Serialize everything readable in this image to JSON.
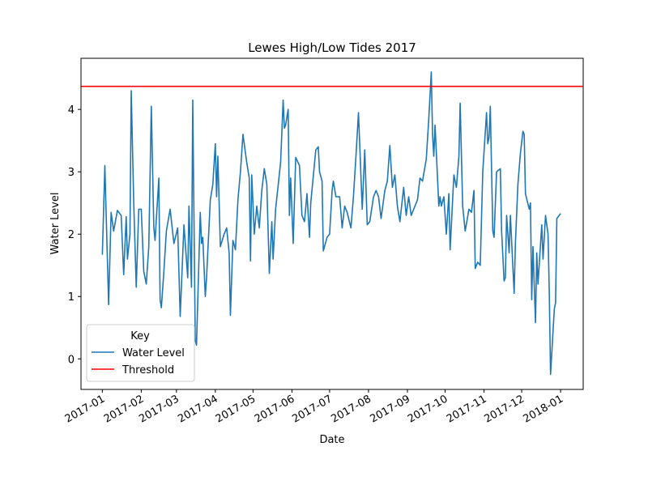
{
  "chart_data": {
    "type": "line",
    "title": "Lewes High/Low Tides 2017",
    "xlabel": "Date",
    "ylabel": "Water Level",
    "x": [
      0,
      2,
      5,
      7,
      9,
      12,
      15,
      17,
      19,
      20,
      22,
      23,
      25,
      27,
      29,
      31,
      33,
      35,
      37,
      39,
      41,
      42,
      45,
      46,
      47,
      49,
      51,
      54,
      57,
      60,
      62,
      65,
      68,
      69,
      71,
      72,
      74,
      75,
      78,
      79,
      80,
      82,
      83,
      86,
      88,
      90,
      91,
      92,
      94,
      97,
      99,
      101,
      102,
      104,
      106,
      108,
      110,
      112,
      115,
      117,
      118,
      119,
      121,
      123,
      125,
      127,
      129,
      131,
      133,
      135,
      136,
      138,
      142,
      144,
      145,
      146,
      148,
      149,
      150,
      152,
      154,
      157,
      159,
      161,
      163,
      165,
      166,
      170,
      172,
      173,
      175,
      176,
      179,
      181,
      183,
      184,
      186,
      189,
      191,
      193,
      195,
      198,
      200,
      202,
      204,
      207,
      209,
      211,
      213,
      216,
      218,
      220,
      222,
      225,
      227,
      229,
      231,
      233,
      235,
      237,
      240,
      242,
      244,
      246,
      249,
      251,
      253,
      255,
      258,
      260,
      262,
      263,
      264,
      265,
      268,
      269,
      270,
      272,
      274,
      276,
      277,
      280,
      282,
      284,
      285,
      287,
      289,
      292,
      294,
      296,
      297,
      299,
      301,
      303,
      306,
      307,
      308,
      309,
      311,
      312,
      314,
      317,
      318,
      320,
      321,
      322,
      324,
      325,
      328,
      329,
      331,
      333,
      335,
      336,
      337,
      340,
      341,
      342,
      343,
      345,
      346,
      347,
      350,
      351,
      353,
      355,
      356,
      357,
      360,
      361,
      362,
      365
    ],
    "series": [
      {
        "name": "Water Level",
        "color": "#1f77b4",
        "values": [
          1.67,
          3.1,
          0.87,
          2.35,
          2.05,
          2.38,
          2.3,
          1.35,
          2.28,
          1.6,
          2.0,
          4.3,
          2.5,
          1.15,
          2.4,
          2.4,
          1.4,
          1.2,
          1.8,
          4.05,
          2.1,
          1.9,
          2.9,
          0.95,
          0.82,
          1.4,
          2.05,
          2.4,
          1.85,
          2.1,
          0.68,
          2.15,
          1.3,
          2.45,
          1.15,
          4.15,
          0.3,
          0.22,
          2.35,
          1.85,
          1.95,
          1.0,
          1.3,
          2.55,
          2.8,
          3.45,
          2.6,
          3.25,
          1.8,
          2.0,
          2.1,
          1.7,
          0.7,
          1.9,
          1.75,
          2.55,
          3.0,
          3.6,
          3.15,
          2.9,
          1.57,
          2.95,
          2.0,
          2.45,
          2.1,
          2.7,
          3.05,
          2.8,
          1.37,
          2.2,
          1.6,
          2.4,
          3.15,
          4.15,
          3.7,
          3.75,
          4.0,
          2.3,
          2.9,
          1.85,
          3.23,
          3.1,
          2.3,
          2.2,
          2.65,
          1.95,
          2.5,
          3.35,
          3.4,
          3.0,
          2.85,
          1.73,
          1.95,
          2.0,
          2.7,
          2.85,
          2.6,
          2.6,
          2.1,
          2.45,
          2.35,
          2.1,
          2.6,
          3.25,
          3.95,
          2.4,
          3.35,
          2.15,
          2.2,
          2.6,
          2.7,
          2.6,
          2.25,
          2.7,
          2.85,
          3.42,
          2.75,
          2.95,
          2.45,
          2.2,
          2.75,
          2.3,
          2.6,
          2.3,
          2.45,
          2.55,
          2.9,
          2.85,
          3.2,
          3.85,
          4.6,
          3.6,
          3.25,
          3.75,
          2.45,
          2.6,
          2.45,
          2.6,
          2.0,
          2.65,
          1.75,
          2.95,
          2.75,
          3.25,
          4.1,
          2.45,
          2.05,
          2.4,
          2.35,
          2.7,
          1.45,
          1.55,
          1.5,
          3.0,
          3.95,
          3.45,
          3.55,
          4.05,
          2.05,
          1.95,
          3.0,
          3.05,
          2.05,
          1.25,
          1.3,
          2.3,
          1.7,
          2.3,
          1.05,
          1.85,
          2.8,
          3.3,
          3.65,
          3.6,
          2.65,
          2.4,
          2.5,
          0.95,
          1.8,
          0.58,
          1.7,
          1.2,
          2.15,
          1.6,
          2.3,
          2.0,
          1.05,
          -0.25,
          0.8,
          0.9,
          2.25,
          2.33
        ]
      }
    ],
    "threshold": {
      "name": "Threshold",
      "value": 4.37,
      "color": "#ff0000"
    },
    "legend_title": "Key",
    "legend": "lower left",
    "xlim": [
      -17,
      383
    ],
    "xticks": [
      {
        "value": 0,
        "label": "2017-01"
      },
      {
        "value": 31,
        "label": "2017-02"
      },
      {
        "value": 59,
        "label": "2017-03"
      },
      {
        "value": 90,
        "label": "2017-04"
      },
      {
        "value": 120,
        "label": "2017-05"
      },
      {
        "value": 151,
        "label": "2017-06"
      },
      {
        "value": 181,
        "label": "2017-07"
      },
      {
        "value": 212,
        "label": "2017-08"
      },
      {
        "value": 243,
        "label": "2017-09"
      },
      {
        "value": 273,
        "label": "2017-10"
      },
      {
        "value": 304,
        "label": "2017-11"
      },
      {
        "value": 334,
        "label": "2017-12"
      },
      {
        "value": 365,
        "label": "2018-01"
      }
    ],
    "ylim": [
      -0.49,
      4.82
    ],
    "yticks": [
      0,
      1,
      2,
      3,
      4
    ]
  }
}
